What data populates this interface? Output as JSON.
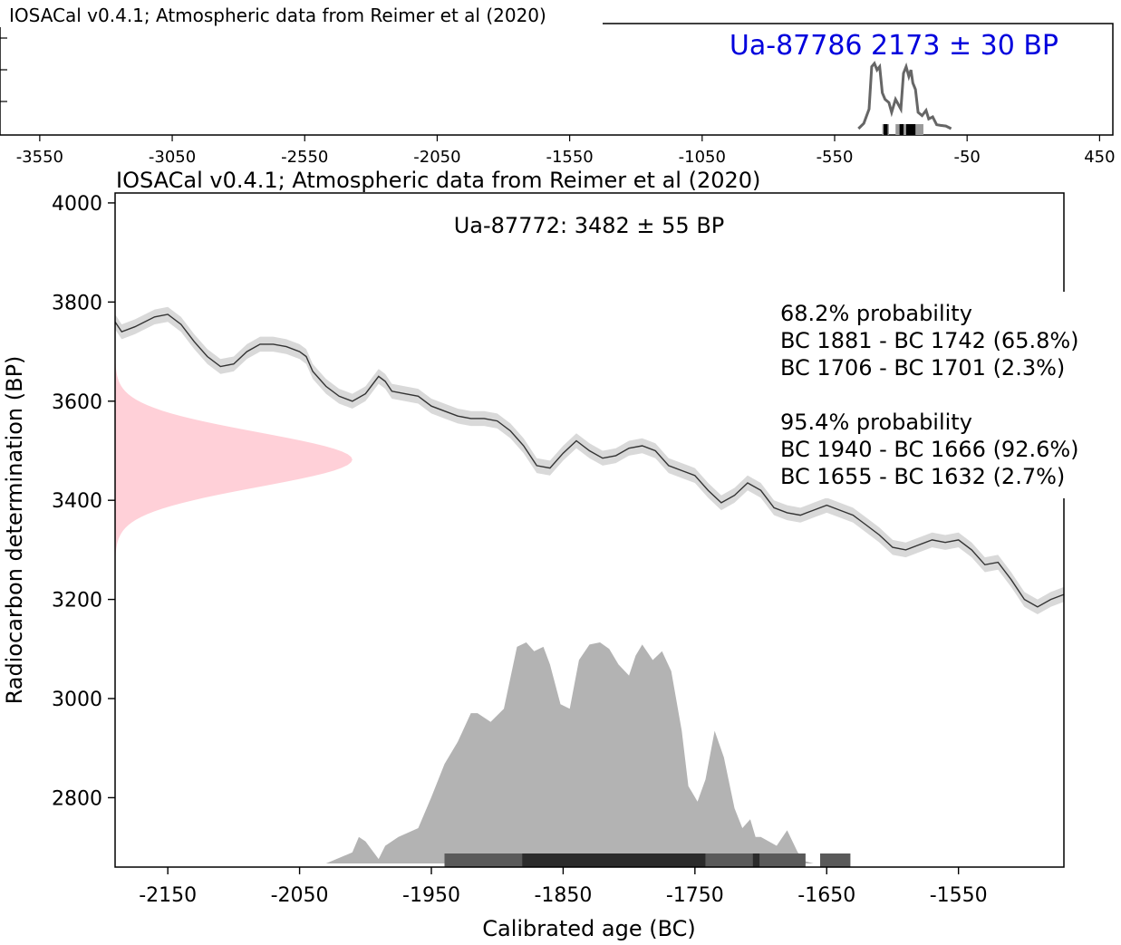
{
  "colors": {
    "top_sample": "#0000dd",
    "calib_curve": "#333333",
    "calib_band": "#d9d9d9",
    "radiocarbon_dist": "#ffd0d8",
    "calibrated_dist": "#b3b3b3",
    "top_curve": "#666666",
    "hpd_68": "#2b2b2b",
    "hpd_95": "#5a5a5a"
  },
  "chart_data": [
    {
      "type": "area",
      "title": "IOSACal v0.4.1; Atmospheric data from Reimer et al (2020)",
      "sample_label": "Ua-87786 2173 ± 30 BP",
      "xlim": [
        -3700,
        500
      ],
      "x_ticks": [
        "-3550",
        "-3050",
        "-2550",
        "-2050",
        "-1550",
        "-1050",
        "-550",
        "-50",
        "450"
      ],
      "x_tick_values": [
        -3550,
        -3050,
        -2550,
        -2050,
        -1550,
        -1050,
        -550,
        -50,
        450
      ],
      "series": [
        {
          "x": [
            -460,
            -440,
            -420,
            -410,
            -400,
            -390,
            -380,
            -370,
            -360,
            -345,
            -335,
            -320,
            -300,
            -290,
            -280,
            -270,
            -262,
            -255,
            -245,
            -235,
            -220,
            -205,
            -195,
            -180,
            -165,
            -150,
            -130,
            -110
          ],
          "values": [
            0.0,
            0.08,
            0.3,
            0.95,
            1.0,
            0.9,
            0.95,
            0.55,
            0.45,
            0.4,
            0.25,
            0.45,
            0.3,
            0.85,
            0.95,
            0.8,
            0.9,
            0.7,
            0.6,
            0.25,
            0.2,
            0.28,
            0.15,
            0.18,
            0.06,
            0.05,
            0.04,
            0.0
          ]
        }
      ],
      "hpd_95": [
        [
          -370,
          -345
        ],
        [
          -320,
          -215
        ]
      ],
      "hpd_68": [
        [
          -365,
          -350
        ],
        [
          -305,
          -290
        ],
        [
          -280,
          -245
        ]
      ]
    },
    {
      "type": "area",
      "title": "IOSACal v0.4.1; Atmospheric data from Reimer et al (2020)",
      "subtitle": "Ua-87772: 3482 ± 55 BP",
      "xlabel": "Calibrated age (BC)",
      "ylabel": "Radiocarbon determination (BP)",
      "xlim": [
        -2190,
        -1470
      ],
      "ylim": [
        2660,
        4020
      ],
      "x_ticks": [
        "-2150",
        "-2050",
        "-1950",
        "-1850",
        "-1750",
        "-1650",
        "-1550"
      ],
      "x_tick_values": [
        -2150,
        -2050,
        -1950,
        -1850,
        -1750,
        -1650,
        -1550
      ],
      "y_ticks": [
        "2800",
        "3000",
        "3200",
        "3400",
        "3600",
        "3800",
        "4000"
      ],
      "y_tick_values": [
        2800,
        3000,
        3200,
        3400,
        3600,
        3800,
        4000
      ],
      "calibration_curve": {
        "x": [
          -2190,
          -2185,
          -2175,
          -2160,
          -2150,
          -2140,
          -2130,
          -2120,
          -2110,
          -2100,
          -2090,
          -2080,
          -2070,
          -2060,
          -2050,
          -2045,
          -2040,
          -2030,
          -2020,
          -2010,
          -2000,
          -1990,
          -1985,
          -1980,
          -1970,
          -1960,
          -1950,
          -1940,
          -1930,
          -1920,
          -1910,
          -1900,
          -1890,
          -1880,
          -1870,
          -1860,
          -1850,
          -1840,
          -1830,
          -1820,
          -1810,
          -1800,
          -1790,
          -1780,
          -1770,
          -1760,
          -1750,
          -1740,
          -1730,
          -1720,
          -1710,
          -1700,
          -1690,
          -1680,
          -1670,
          -1660,
          -1650,
          -1640,
          -1630,
          -1620,
          -1610,
          -1600,
          -1590,
          -1580,
          -1570,
          -1560,
          -1550,
          -1540,
          -1530,
          -1520,
          -1510,
          -1500,
          -1490,
          -1480,
          -1470
        ],
        "values": [
          3760,
          3740,
          3750,
          3770,
          3775,
          3755,
          3720,
          3690,
          3670,
          3675,
          3700,
          3715,
          3715,
          3710,
          3700,
          3690,
          3660,
          3630,
          3610,
          3600,
          3615,
          3650,
          3640,
          3620,
          3615,
          3610,
          3590,
          3580,
          3570,
          3565,
          3565,
          3560,
          3540,
          3510,
          3470,
          3465,
          3495,
          3520,
          3500,
          3485,
          3490,
          3505,
          3510,
          3500,
          3470,
          3460,
          3450,
          3420,
          3395,
          3410,
          3435,
          3420,
          3385,
          3375,
          3370,
          3380,
          3390,
          3380,
          3370,
          3350,
          3330,
          3305,
          3300,
          3310,
          3320,
          3315,
          3320,
          3300,
          3270,
          3275,
          3240,
          3200,
          3185,
          3200,
          3210
        ],
        "band": 15
      },
      "radiocarbon_distribution": {
        "mean": 3482,
        "sd": 55,
        "peak_width_bc_years": 180
      },
      "calibrated_distribution": {
        "x": [
          -2030,
          -2010,
          -2005,
          -2000,
          -1990,
          -1985,
          -1975,
          -1960,
          -1950,
          -1940,
          -1930,
          -1920,
          -1915,
          -1905,
          -1895,
          -1885,
          -1878,
          -1872,
          -1865,
          -1860,
          -1852,
          -1845,
          -1838,
          -1830,
          -1822,
          -1815,
          -1808,
          -1800,
          -1795,
          -1790,
          -1782,
          -1775,
          -1768,
          -1760,
          -1755,
          -1748,
          -1742,
          -1735,
          -1728,
          -1720,
          -1714,
          -1708,
          -1704,
          -1700,
          -1694,
          -1688,
          -1680,
          -1672,
          -1666,
          -1660,
          -1655,
          -1650,
          -1645,
          -1640,
          -1632,
          -1625,
          -1615,
          -1605,
          -1590,
          -1570,
          -1550,
          -1530
        ],
        "values": [
          0,
          0.05,
          0.12,
          0.1,
          0.02,
          0.08,
          0.12,
          0.16,
          0.3,
          0.45,
          0.55,
          0.68,
          0.68,
          0.64,
          0.7,
          0.98,
          1.0,
          0.96,
          0.98,
          0.9,
          0.72,
          0.7,
          0.92,
          0.99,
          1.0,
          0.97,
          0.9,
          0.85,
          0.94,
          0.99,
          0.92,
          0.96,
          0.87,
          0.6,
          0.35,
          0.28,
          0.38,
          0.6,
          0.48,
          0.25,
          0.16,
          0.2,
          0.12,
          0.12,
          0.1,
          0.08,
          0.15,
          0.05,
          0.01,
          0.0,
          0.0,
          0.0,
          0.0,
          0.0,
          0.0,
          0.0,
          0.0,
          0.0,
          0.0,
          0.0,
          0.0,
          0.0
        ]
      },
      "hpd_95": [
        [
          -1940,
          -1666
        ],
        [
          -1655,
          -1632
        ]
      ],
      "hpd_68": [
        [
          -1881,
          -1742
        ],
        [
          -1706,
          -1701
        ]
      ],
      "annotation": {
        "p68_title": "68.2% probability",
        "p68_line1": "BC 1881 - BC 1742 (65.8%)",
        "p68_line2": "BC 1706 - BC 1701 (2.3%)",
        "p95_title": "95.4% probability",
        "p95_line1": "BC 1940 - BC 1666 (92.6%)",
        "p95_line2": "BC 1655 - BC 1632 (2.7%)"
      }
    }
  ]
}
